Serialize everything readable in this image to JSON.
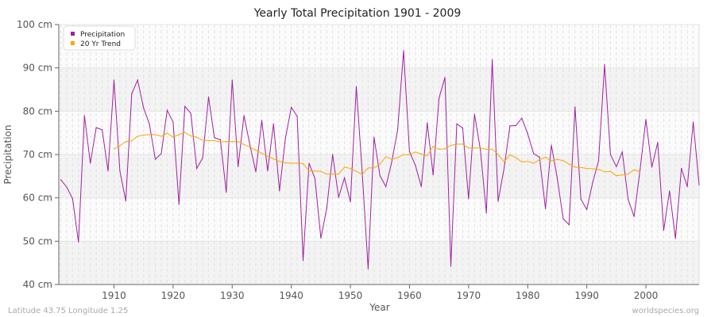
{
  "chart_data": {
    "type": "line",
    "title": "Yearly Total Precipitation 1901 - 2009",
    "xlabel": "Year",
    "ylabel": "Precipitation",
    "xlim": [
      1901,
      2009
    ],
    "ylim": [
      40,
      100
    ],
    "x_ticks": [
      1910,
      1920,
      1930,
      1940,
      1950,
      1960,
      1970,
      1980,
      1990,
      2000
    ],
    "y_ticks": [
      40,
      50,
      60,
      70,
      80,
      90,
      100
    ],
    "y_tick_labels": [
      "40 cm",
      "50 cm",
      "60 cm",
      "70 cm",
      "80 cm",
      "90 cm",
      "100 cm"
    ],
    "grid": true,
    "legend_position": "top-left",
    "series": [
      {
        "name": "Precipitation",
        "color": "#a020a0",
        "x_start": 1901,
        "values": [
          64.2,
          62.5,
          59.8,
          49.8,
          79,
          68,
          76.2,
          75.7,
          66.2,
          87.2,
          66.2,
          59.3,
          84,
          87.2,
          80.8,
          77,
          68.9,
          70.2,
          80.2,
          77.5,
          58.5,
          81.1,
          79.5,
          66.8,
          69.2,
          83.3,
          73.9,
          73.4,
          61.3,
          87.2,
          67.2,
          79,
          72.2,
          66,
          77.9,
          66.2,
          77.1,
          61.6,
          73.7,
          80.9,
          78.8,
          45.5,
          68,
          64.5,
          50.7,
          57.6,
          70,
          60.1,
          64.6,
          59.1,
          85.7,
          65.9,
          43.6,
          74,
          65.1,
          62.6,
          68.3,
          75.8,
          94,
          70.7,
          67.5,
          62.6,
          77.3,
          65.3,
          83,
          87.8,
          44.2,
          77.1,
          76.1,
          59.8,
          79.3,
          71.1,
          56.5,
          91.9,
          59.2,
          66.8,
          76.6,
          76.7,
          78.4,
          74.8,
          70.2,
          69.4,
          57.5,
          72.2,
          64.6,
          55.2,
          53.8,
          81,
          59.7,
          57.3,
          63.6,
          68.6,
          90.8,
          70,
          67.2,
          70.6,
          59.6,
          55.7,
          66.4,
          78.1,
          67.1,
          72.8,
          52.5,
          61.6,
          50.6,
          66.8,
          62.6,
          77.5,
          63
        ]
      },
      {
        "name": "20 Yr Trend",
        "color": "#ffa500",
        "x_start": 1910,
        "values": [
          71.3,
          72,
          73,
          73.2,
          74.2,
          74.5,
          74.6,
          74.6,
          74.2,
          74.9,
          74,
          74.6,
          75.1,
          74.3,
          74,
          73.3,
          73.2,
          73.2,
          72.9,
          73,
          73,
          73,
          72.3,
          71.7,
          71,
          70.3,
          69.6,
          69,
          68.4,
          68.1,
          68,
          68,
          67.9,
          66.2,
          66.2,
          66.1,
          65.5,
          65.5,
          65.5,
          67.1,
          66.8,
          66.1,
          65.4,
          66.9,
          66.9,
          67.8,
          69.5,
          68.9,
          69.3,
          70,
          69.9,
          70.6,
          70.1,
          69.7,
          71.9,
          71.2,
          71.3,
          72.1,
          72.4,
          72.4,
          71.5,
          71.5,
          71.5,
          71.2,
          71.2,
          70,
          68.3,
          69.9,
          69.3,
          68.3,
          68.4,
          68,
          68.8,
          69.4,
          68.5,
          68.9,
          68.6,
          67.8,
          67.1,
          67,
          66.8,
          66.7,
          66.6,
          66,
          66.1,
          65.1,
          65.3,
          65.5,
          66.5,
          66
        ]
      }
    ]
  },
  "footer": {
    "location": "Latitude 43.75 Longitude 1.25",
    "source": "worldspecies.org"
  }
}
